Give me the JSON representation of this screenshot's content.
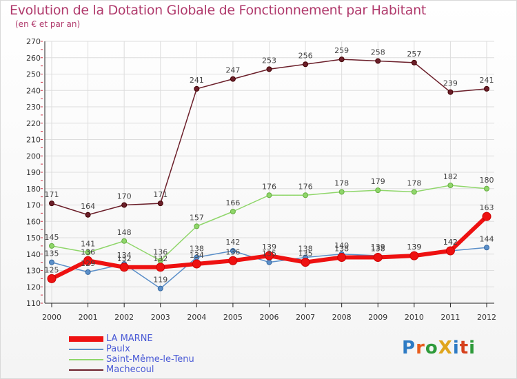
{
  "title": "Evolution de la Dotation Globale de Fonctionnement par Habitant",
  "subtitle": "(en € et par an)",
  "logo": {
    "text": "ProXiti",
    "colors": [
      "#2e7bc4",
      "#e85c1c",
      "#2e9a3a",
      "#e0a51c",
      "#2e7bc4",
      "#d6401c",
      "#2e9a3a"
    ]
  },
  "chart_data": {
    "type": "line",
    "title": "Evolution de la Dotation Globale de Fonctionnement par Habitant",
    "subtitle": "(en € et par an)",
    "xlabel": "",
    "ylabel": "",
    "ylim": [
      110,
      270
    ],
    "y_ticks": [
      110,
      120,
      130,
      140,
      150,
      160,
      170,
      180,
      190,
      200,
      210,
      220,
      230,
      240,
      250,
      260,
      270
    ],
    "categories": [
      "2000",
      "2001",
      "2002",
      "2003",
      "2004",
      "2005",
      "2006",
      "2007",
      "2008",
      "2009",
      "2010",
      "2011",
      "2012"
    ],
    "grid": true,
    "legend_position": "bottom-left",
    "series": [
      {
        "name": "Machecoul",
        "color": "#6b1f2a",
        "width": 1.5,
        "values": [
          171,
          164,
          170,
          171,
          241,
          247,
          253,
          256,
          259,
          258,
          257,
          239,
          241
        ]
      },
      {
        "name": "Saint-Même-le-Tenu",
        "color": "#8fd66a",
        "width": 1.5,
        "values": [
          145,
          141,
          148,
          136,
          157,
          166,
          176,
          176,
          178,
          179,
          178,
          182,
          180
        ]
      },
      {
        "name": "Paulx",
        "color": "#5b8fc9",
        "width": 1.5,
        "values": [
          135,
          129,
          134,
          119,
          138,
          142,
          135,
          138,
          140,
          139,
          139,
          142,
          144
        ]
      },
      {
        "name": "LA MARNE",
        "color": "#ee1111",
        "width": 6,
        "values": [
          125,
          136,
          132,
          132,
          134,
          136,
          139,
          135,
          138,
          138,
          139,
          142,
          163
        ]
      }
    ],
    "legend": [
      "LA MARNE",
      "Paulx",
      "Saint-Même-le-Tenu",
      "Machecoul"
    ]
  }
}
